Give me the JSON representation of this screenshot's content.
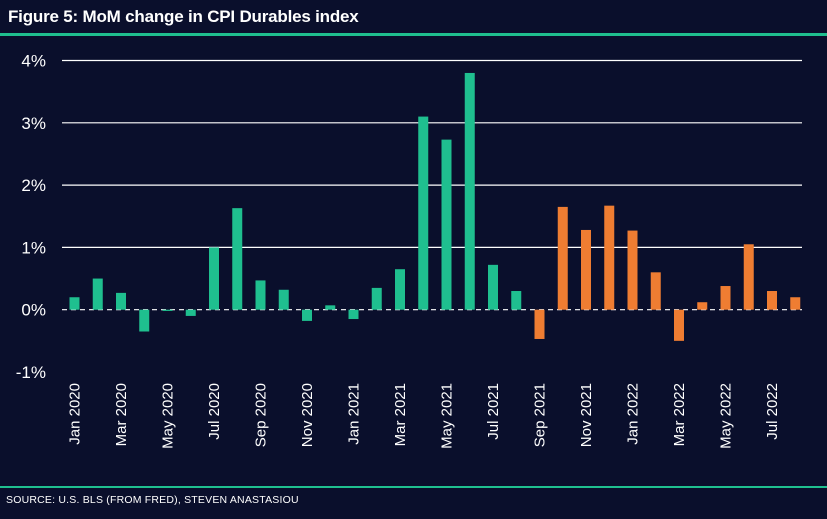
{
  "header": {
    "title": "Figure 5: MoM change in CPI Durables index"
  },
  "footer": {
    "source": "SOURCE: U.S. BLS (FROM FRED), STEVEN ANASTASIOU"
  },
  "chart_data": {
    "type": "bar",
    "title": "Figure 5: MoM change in CPI Durables index",
    "xlabel": "",
    "ylabel": "",
    "ylim": [
      -1,
      4
    ],
    "y_ticks": [
      "4%",
      "3%",
      "2%",
      "1%",
      "0%",
      "-1%"
    ],
    "y_tick_values": [
      4,
      3,
      2,
      1,
      0,
      -1
    ],
    "grid": true,
    "zero_line": "dashed",
    "legend": "none",
    "categories": [
      "Jan 2020",
      "Feb 2020",
      "Mar 2020",
      "Apr 2020",
      "May 2020",
      "Jun 2020",
      "Jul 2020",
      "Aug 2020",
      "Sep 2020",
      "Oct 2020",
      "Nov 2020",
      "Dec 2020",
      "Jan 2021",
      "Feb 2021",
      "Mar 2021",
      "Apr 2021",
      "May 2021",
      "Jun 2021",
      "Jul 2021",
      "Aug 2021",
      "Sep 2021",
      "Oct 2021",
      "Nov 2021",
      "Dec 2021",
      "Jan 2022",
      "Feb 2022",
      "Mar 2022",
      "Apr 2022",
      "May 2022",
      "Jun 2022",
      "Jul 2022",
      "Aug 2022"
    ],
    "x_tick_labels": [
      "Jan 2020",
      "Mar 2020",
      "May 2020",
      "Jul 2020",
      "Sep 2020",
      "Nov 2020",
      "Jan 2021",
      "Mar 2021",
      "May 2021",
      "Jul 2021",
      "Sep 2021",
      "Nov 2021",
      "Jan 2022",
      "Mar 2022",
      "May 2022",
      "Jul 2022"
    ],
    "values": [
      0.2,
      0.5,
      0.27,
      -0.35,
      -0.02,
      -0.1,
      1.0,
      1.63,
      0.47,
      0.32,
      -0.18,
      0.07,
      -0.15,
      0.35,
      0.65,
      3.1,
      2.73,
      3.8,
      0.72,
      0.3,
      -0.47,
      1.65,
      1.28,
      1.67,
      1.27,
      0.6,
      -0.5,
      0.12,
      0.38,
      1.05,
      0.3,
      0.2
    ],
    "series_split_index": 20,
    "colors": {
      "first_segment": "#1fbf8f",
      "second_segment": "#ef7d32",
      "background": "#0a0f2c",
      "grid": "#ffffff",
      "accent_rule": "#1fbf8f"
    }
  }
}
